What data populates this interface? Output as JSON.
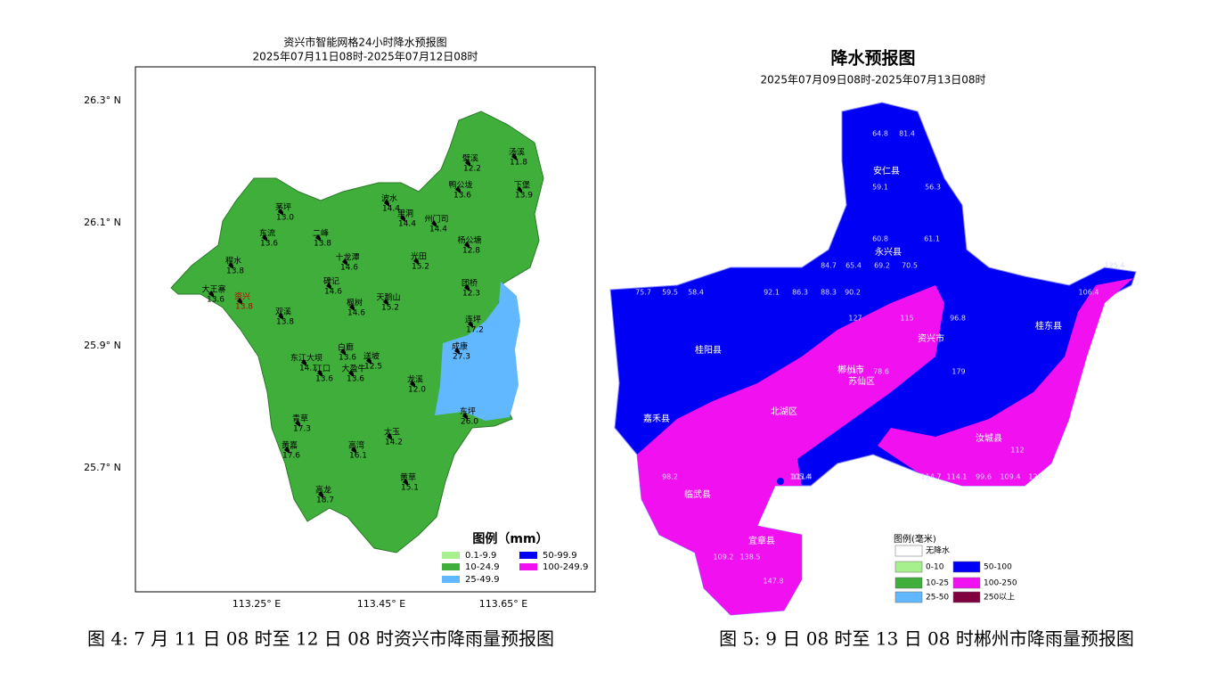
{
  "left_map": {
    "title": "资兴市智能网格24小时降水预报图",
    "subtitle": "2025年07月11日08时-2025年07月12日08时",
    "lat_labels": [
      "26.3° N",
      "26.1° N",
      "25.9° N",
      "25.7° N"
    ],
    "lon_labels": [
      "113.25° E",
      "113.45° E",
      "113.65° E"
    ],
    "stations": [
      {
        "name": "璧溪",
        "value": "12.2"
      },
      {
        "name": "汤溪",
        "value": "11.8"
      },
      {
        "name": "鸭公垅",
        "value": "13.6"
      },
      {
        "name": "下堡",
        "value": "13.9"
      },
      {
        "name": "波水",
        "value": "14.4"
      },
      {
        "name": "里洞",
        "value": "14.4"
      },
      {
        "name": "州门司",
        "value": "14.4"
      },
      {
        "name": "茅坪",
        "value": "13.0"
      },
      {
        "name": "二峰",
        "value": "13.8"
      },
      {
        "name": "东流",
        "value": "13.6"
      },
      {
        "name": "杨公塘",
        "value": "12.8"
      },
      {
        "name": "程水",
        "value": "13.8"
      },
      {
        "name": "十龙潭",
        "value": "14.6"
      },
      {
        "name": "光田",
        "value": "15.2"
      },
      {
        "name": "大王寨",
        "value": "13.6"
      },
      {
        "name": "资兴",
        "value": "13.8"
      },
      {
        "name": "碑记",
        "value": "14.6"
      },
      {
        "name": "团桥",
        "value": "12.3"
      },
      {
        "name": "天鹅山",
        "value": "15.2"
      },
      {
        "name": "枫树",
        "value": "14.6"
      },
      {
        "name": "双溪",
        "value": "13.8"
      },
      {
        "name": "连坪",
        "value": "17.2"
      },
      {
        "name": "成康",
        "value": "27.3"
      },
      {
        "name": "白廊",
        "value": "13.6"
      },
      {
        "name": "送坡",
        "value": "12.5"
      },
      {
        "name": "东江大坝",
        "value": "14.1"
      },
      {
        "name": "江口",
        "value": "13.6"
      },
      {
        "name": "大盈牛",
        "value": "13.6"
      },
      {
        "name": "龙溪",
        "value": "12.0"
      },
      {
        "name": "东坪",
        "value": "26.0"
      },
      {
        "name": "青草",
        "value": "17.3"
      },
      {
        "name": "黄嘉",
        "value": "17.6"
      },
      {
        "name": "太玉",
        "value": "14.2"
      },
      {
        "name": "高湾",
        "value": "16.1"
      },
      {
        "name": "黄草",
        "value": "15.1"
      },
      {
        "name": "高龙",
        "value": "18.7"
      }
    ],
    "legend": {
      "title": "图例（mm）",
      "items": [
        {
          "label": "0.1-9.9",
          "color": "#a6f08e"
        },
        {
          "label": "10-24.9",
          "color": "#3fae3a"
        },
        {
          "label": "25-49.9",
          "color": "#61b8ff"
        },
        {
          "label": "50-99.9",
          "color": "#0000f5"
        },
        {
          "label": "100-249.9",
          "color": "#f010f0"
        }
      ]
    }
  },
  "right_map": {
    "title": "降水预报图",
    "subtitle": "2025年07月09日08时-2025年07月13日08时",
    "counties": [
      "安仁县",
      "永兴县",
      "资兴市",
      "桂阳县",
      "郴州市",
      "苏仙区",
      "北湖区",
      "嘉禾县",
      "桂东县",
      "汝城县",
      "临武县",
      "宜章县"
    ],
    "values": [
      "64.8",
      "81.4",
      "59.1",
      "56.3",
      "60.8",
      "61.1",
      "84.7",
      "65.4",
      "69.2",
      "70.5",
      "75.7",
      "59.5",
      "58.4",
      "92.1",
      "86.3",
      "88.3",
      "90.2",
      "127",
      "115",
      "96.8",
      "94.7",
      "78.6",
      "179",
      "112",
      "105.4",
      "98.2",
      "111.4",
      "114.7",
      "114.1",
      "99.6",
      "109.4",
      "128",
      "109.2",
      "138.5",
      "147.8",
      "125.4",
      "106.4"
    ],
    "legend": {
      "title": "图例(毫米)",
      "items": [
        {
          "label": "无降水",
          "color": "#ffffff"
        },
        {
          "label": "0-10",
          "color": "#a6f08e"
        },
        {
          "label": "50-100",
          "color": "#0000f5"
        },
        {
          "label": "10-25",
          "color": "#3fae3a"
        },
        {
          "label": "100-250",
          "color": "#f010f0"
        },
        {
          "label": "25-50",
          "color": "#61b8ff"
        },
        {
          "label": "250以上",
          "color": "#800040"
        }
      ]
    }
  },
  "captions": [
    "图 4: 7 月 11 日 08 时至 12 日 08 时资兴市降雨量预报图",
    "图 5: 9 日 08 时至 13 日 08 时郴州市降雨量预报图"
  ]
}
